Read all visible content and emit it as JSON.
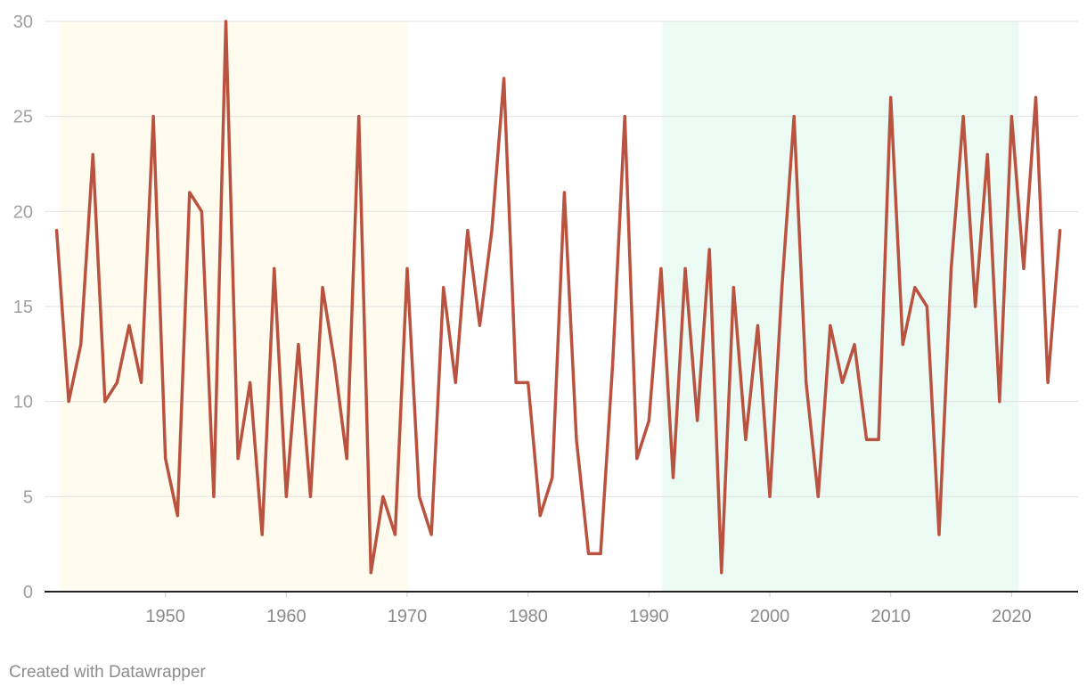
{
  "chart_data": {
    "type": "line",
    "x": [
      1941,
      1942,
      1943,
      1944,
      1945,
      1946,
      1947,
      1948,
      1949,
      1950,
      1951,
      1952,
      1953,
      1954,
      1955,
      1956,
      1957,
      1958,
      1959,
      1960,
      1961,
      1962,
      1963,
      1964,
      1965,
      1966,
      1967,
      1968,
      1969,
      1970,
      1971,
      1972,
      1973,
      1974,
      1975,
      1976,
      1977,
      1978,
      1979,
      1980,
      1981,
      1982,
      1983,
      1984,
      1985,
      1986,
      1987,
      1988,
      1989,
      1990,
      1991,
      1992,
      1993,
      1994,
      1995,
      1996,
      1997,
      1998,
      1999,
      2000,
      2001,
      2002,
      2003,
      2004,
      2005,
      2006,
      2007,
      2008,
      2009,
      2010,
      2011,
      2012,
      2013,
      2014,
      2015,
      2016,
      2017,
      2018,
      2019,
      2020,
      2021,
      2022,
      2023,
      2024
    ],
    "series": [
      {
        "values": [
          19,
          10,
          13,
          23,
          10,
          11,
          14,
          11,
          25,
          7,
          4,
          21,
          20,
          5,
          30,
          7,
          11,
          3,
          17,
          5,
          13,
          5,
          16,
          12,
          7,
          25,
          1,
          5,
          3,
          17,
          5,
          3,
          16,
          11,
          19,
          14,
          19,
          27,
          11,
          11,
          4,
          6,
          21,
          8,
          2,
          2,
          12,
          25,
          7,
          9,
          17,
          6,
          17,
          9,
          18,
          1,
          16,
          8,
          14,
          5,
          16,
          25,
          11,
          5,
          14,
          11,
          13,
          8,
          8,
          26,
          13,
          16,
          15,
          3,
          17,
          25,
          15,
          23,
          10,
          25,
          17,
          26,
          11,
          19
        ],
        "color": "#b95340"
      }
    ],
    "xlim": [
      1940,
      2025.5
    ],
    "ylim": [
      0,
      30
    ],
    "yticks": [
      "0",
      "5",
      "10",
      "15",
      "20",
      "25",
      "30"
    ],
    "xticks": [
      "1950",
      "1960",
      "1970",
      "1980",
      "1990",
      "2000",
      "2010",
      "2020"
    ],
    "shaded_ranges": [
      {
        "from": 1941.3,
        "to": 1970,
        "color": "#fffbee"
      },
      {
        "from": 1991.1,
        "to": 2020.6,
        "color": "#ebfbf4"
      }
    ],
    "grid": true,
    "title": "",
    "xlabel": "",
    "ylabel": ""
  },
  "credit": "Created with Datawrapper"
}
